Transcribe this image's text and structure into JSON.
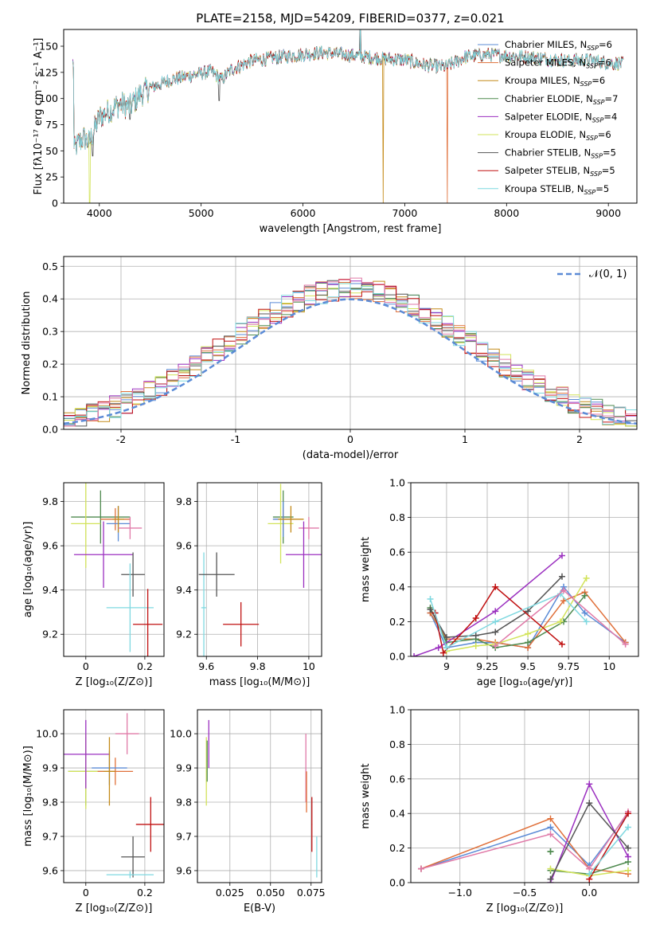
{
  "colors": {
    "chabrier_miles": "#5b8bd6",
    "salpeter_miles": "#e0703a",
    "kroupa_miles": "#c48a18",
    "chabrier_elodie": "#4f8a4f",
    "salpeter_elodie": "#9b30c0",
    "kroupa_elodie": "#d2e35a",
    "chabrier_stelib": "#555555",
    "salpeter_stelib": "#c01010",
    "kroupa_stelib": "#7fd8e0",
    "extra_pink": "#e07aa8",
    "normal": "#5b8bd6"
  },
  "chart_data": [
    {
      "id": "spectrum",
      "type": "line",
      "title": "PLATE=2158, MJD=54209, FIBERID=0377, z=0.021",
      "xlabel": "wavelength [Angstrom, rest frame]",
      "ylabel": "Flux [fλ10⁻¹⁷ erg cm⁻² s⁻¹ A⁻¹]",
      "xlim": [
        3650,
        9280
      ],
      "ylim": [
        0,
        166
      ],
      "xticks": [
        4000,
        5000,
        6000,
        7000,
        8000,
        9000
      ],
      "yticks": [
        0,
        25,
        50,
        75,
        100,
        125,
        150
      ],
      "grid": false,
      "legend_position": "upper-right",
      "legend": [
        {
          "name": "Chabrier MILES, N",
          "sub": "SSP",
          "tail": "=6",
          "color_key": "chabrier_miles"
        },
        {
          "name": "Salpeter MILES, N",
          "sub": "SSP",
          "tail": "=6",
          "color_key": "salpeter_miles"
        },
        {
          "name": "Kroupa MILES, N",
          "sub": "SSP",
          "tail": "=6",
          "color_key": "kroupa_miles"
        },
        {
          "name": "Chabrier ELODIE, N",
          "sub": "SSP",
          "tail": "=7",
          "color_key": "chabrier_elodie"
        },
        {
          "name": "Salpeter ELODIE, N",
          "sub": "SSP",
          "tail": "=4",
          "color_key": "salpeter_elodie"
        },
        {
          "name": "Kroupa ELODIE, N",
          "sub": "SSP",
          "tail": "=6",
          "color_key": "kroupa_elodie"
        },
        {
          "name": "Chabrier STELIB, N",
          "sub": "SSP",
          "tail": "=5",
          "color_key": "chabrier_stelib"
        },
        {
          "name": "Salpeter STELIB, N",
          "sub": "SSP",
          "tail": "=5",
          "color_key": "salpeter_stelib"
        },
        {
          "name": "Kroupa STELIB, N",
          "sub": "SSP",
          "tail": "=5",
          "color_key": "kroupa_stelib"
        }
      ],
      "continuum": [
        [
          3750,
          50
        ],
        [
          3800,
          58
        ],
        [
          3850,
          62
        ],
        [
          3900,
          58
        ],
        [
          3950,
          70
        ],
        [
          4000,
          82
        ],
        [
          4100,
          88
        ],
        [
          4200,
          95
        ],
        [
          4300,
          92
        ],
        [
          4400,
          104
        ],
        [
          4500,
          110
        ],
        [
          4700,
          118
        ],
        [
          4900,
          122
        ],
        [
          5100,
          126
        ],
        [
          5200,
          118
        ],
        [
          5300,
          128
        ],
        [
          5500,
          136
        ],
        [
          5800,
          140
        ],
        [
          6000,
          142
        ],
        [
          6200,
          144
        ],
        [
          6400,
          142
        ],
        [
          6600,
          140
        ],
        [
          6800,
          138
        ],
        [
          7000,
          137
        ],
        [
          7200,
          132
        ],
        [
          7400,
          130
        ],
        [
          7600,
          140
        ],
        [
          7800,
          142
        ],
        [
          8000,
          141
        ],
        [
          8200,
          140
        ],
        [
          8400,
          138
        ],
        [
          8600,
          136
        ],
        [
          8800,
          137
        ],
        [
          9000,
          134
        ],
        [
          9150,
          133
        ]
      ],
      "spikes": [
        [
          6563,
          166
        ],
        [
          5175,
          98
        ],
        [
          4300,
          80
        ],
        [
          3933,
          45
        ]
      ],
      "dropouts": [
        {
          "x": 3905,
          "color_key": "kroupa_elodie"
        },
        {
          "x": 6790,
          "color_key": "kroupa_miles"
        },
        {
          "x": 7420,
          "color_key": "salpeter_miles"
        }
      ]
    },
    {
      "id": "residuals",
      "type": "step",
      "xlabel": "(data-model)/error",
      "ylabel": "Normed distribution",
      "xlim": [
        -2.5,
        2.5
      ],
      "ylim": [
        0,
        0.53
      ],
      "xticks": [
        -2,
        -1,
        0,
        1,
        2
      ],
      "yticks": [
        0.0,
        0.1,
        0.2,
        0.3,
        0.4,
        0.5
      ],
      "grid": true,
      "legend_position": "upper-right",
      "normal_label": "𝒩(0, 1)",
      "bin_width": 0.1,
      "n_series": 9
    },
    {
      "id": "age_vs_z",
      "type": "errorbar",
      "xlabel": "Z [log₁₀(Z/Z⊙)]",
      "ylabel": "age  [log₁₀(age/yr)]",
      "xlim": [
        -0.075,
        0.265
      ],
      "ylim": [
        9.1,
        9.885
      ],
      "xticks": [
        0.0,
        0.2
      ],
      "yticks": [
        9.2,
        9.4,
        9.6,
        9.8
      ],
      "points": [
        {
          "x": 0.05,
          "xerr": 0.1,
          "y": 9.73,
          "yerr": 0.12,
          "color_key": "chabrier_elodie"
        },
        {
          "x": 0.0,
          "xerr": 0.05,
          "y": 9.7,
          "yerr": 0.2,
          "color_key": "kroupa_elodie"
        },
        {
          "x": 0.1,
          "xerr": 0.05,
          "y": 9.72,
          "yerr": 0.05,
          "color_key": "salpeter_miles"
        },
        {
          "x": 0.11,
          "xerr": 0.04,
          "y": 9.7,
          "yerr": 0.08,
          "color_key": "chabrier_miles"
        },
        {
          "x": 0.11,
          "xerr": 0.02,
          "y": 9.72,
          "yerr": 0.06,
          "color_key": "kroupa_miles"
        },
        {
          "x": 0.15,
          "xerr": 0.04,
          "y": 9.68,
          "yerr": 0.05,
          "color_key": "extra_pink"
        },
        {
          "x": 0.06,
          "xerr": 0.1,
          "y": 9.56,
          "yerr": 0.15,
          "color_key": "salpeter_elodie"
        },
        {
          "x": 0.16,
          "xerr": 0.04,
          "y": 9.47,
          "yerr": 0.1,
          "color_key": "chabrier_stelib"
        },
        {
          "x": 0.15,
          "xerr": 0.08,
          "y": 9.32,
          "yerr": 0.2,
          "color_key": "kroupa_stelib"
        },
        {
          "x": 0.21,
          "xerr": 0.05,
          "y": 9.245,
          "yerr": 0.16,
          "color_key": "salpeter_stelib"
        }
      ]
    },
    {
      "id": "age_vs_mass",
      "type": "errorbar",
      "xlabel": "mass [log₁₀(M/M⊙)]",
      "ylabel": "",
      "xlim": [
        9.565,
        10.05
      ],
      "ylim": [
        9.1,
        9.885
      ],
      "xticks": [
        9.6,
        9.8,
        10.0
      ],
      "yticks": [
        9.2,
        9.4,
        9.6,
        9.8
      ],
      "points": [
        {
          "x": 9.59,
          "xerr": 0.01,
          "y": 9.32,
          "yerr": 0.25,
          "color_key": "kroupa_stelib"
        },
        {
          "x": 9.64,
          "xerr": 0.07,
          "y": 9.47,
          "yerr": 0.1,
          "color_key": "chabrier_stelib"
        },
        {
          "x": 9.735,
          "xerr": 0.07,
          "y": 9.245,
          "yerr": 0.1,
          "color_key": "salpeter_stelib"
        },
        {
          "x": 9.9,
          "xerr": 0.04,
          "y": 9.73,
          "yerr": 0.12,
          "color_key": "chabrier_elodie"
        },
        {
          "x": 9.89,
          "xerr": 0.05,
          "y": 9.7,
          "yerr": 0.18,
          "color_key": "kroupa_elodie"
        },
        {
          "x": 9.9,
          "xerr": 0.04,
          "y": 9.72,
          "yerr": 0.05,
          "color_key": "salpeter_miles"
        },
        {
          "x": 9.9,
          "xerr": 0.04,
          "y": 9.72,
          "yerr": 0.08,
          "color_key": "chabrier_miles"
        },
        {
          "x": 9.93,
          "xerr": 0.05,
          "y": 9.72,
          "yerr": 0.06,
          "color_key": "kroupa_miles"
        },
        {
          "x": 10.0,
          "xerr": 0.04,
          "y": 9.68,
          "yerr": 0.05,
          "color_key": "extra_pink"
        },
        {
          "x": 9.98,
          "xerr": 0.07,
          "y": 9.56,
          "yerr": 0.15,
          "color_key": "salpeter_elodie"
        }
      ]
    },
    {
      "id": "weight_vs_age",
      "type": "line",
      "xlabel": "age  [log₁₀(age/yr)]",
      "ylabel": "mass weight",
      "xlim": [
        8.78,
        10.18
      ],
      "ylim": [
        0.0,
        1.0
      ],
      "xticks": [
        9.0,
        9.25,
        9.5,
        9.75,
        10.0
      ],
      "yticks": [
        0.0,
        0.2,
        0.4,
        0.6,
        0.8,
        1.0
      ],
      "grid": true,
      "series": [
        {
          "color_key": "chabrier_miles",
          "x": [
            8.9,
            9.0,
            9.18,
            9.3,
            9.5,
            9.72,
            9.85,
            10.1
          ],
          "y": [
            0.25,
            0.05,
            0.08,
            0.08,
            0.05,
            0.4,
            0.25,
            0.08
          ]
        },
        {
          "color_key": "salpeter_miles",
          "x": [
            8.9,
            9.0,
            9.18,
            9.3,
            9.5,
            9.72,
            9.85,
            10.1
          ],
          "y": [
            0.25,
            0.1,
            0.1,
            0.08,
            0.05,
            0.32,
            0.37,
            0.08
          ]
        },
        {
          "color_key": "chabrier_elodie",
          "x": [
            8.9,
            9.0,
            9.18,
            9.3,
            9.5,
            9.72,
            9.85
          ],
          "y": [
            0.28,
            0.08,
            0.1,
            0.05,
            0.08,
            0.2,
            0.35
          ]
        },
        {
          "color_key": "salpeter_elodie",
          "x": [
            8.8,
            8.95,
            9.3,
            9.71
          ],
          "y": [
            0.0,
            0.05,
            0.26,
            0.58
          ]
        },
        {
          "color_key": "kroupa_elodie",
          "x": [
            9.0,
            9.18,
            9.3,
            9.5,
            9.7,
            9.86
          ],
          "y": [
            0.03,
            0.06,
            0.07,
            0.13,
            0.2,
            0.45
          ]
        },
        {
          "color_key": "chabrier_stelib",
          "x": [
            8.9,
            9.0,
            9.18,
            9.3,
            9.5,
            9.71
          ],
          "y": [
            0.27,
            0.11,
            0.12,
            0.14,
            0.26,
            0.46
          ]
        },
        {
          "color_key": "salpeter_stelib",
          "x": [
            8.93,
            8.98,
            9.18,
            9.3,
            9.71
          ],
          "y": [
            0.25,
            0.02,
            0.22,
            0.4,
            0.07
          ]
        },
        {
          "color_key": "kroupa_stelib",
          "x": [
            8.9,
            9.0,
            9.3,
            9.7,
            9.86
          ],
          "y": [
            0.33,
            0.05,
            0.2,
            0.36,
            0.2
          ]
        },
        {
          "color_key": "extra_pink",
          "x": [
            9.3,
            9.72,
            10.1
          ],
          "y": [
            0.06,
            0.38,
            0.07
          ]
        }
      ]
    },
    {
      "id": "mass_vs_z",
      "type": "errorbar",
      "xlabel": "Z [log₁₀(Z/Z⊙)]",
      "ylabel": "mass [log₁₀(M/M⊙)]",
      "xlim": [
        -0.075,
        0.265
      ],
      "ylim": [
        9.565,
        10.07
      ],
      "xticks": [
        0.0,
        0.2
      ],
      "yticks": [
        9.6,
        9.7,
        9.8,
        9.9,
        10.0
      ],
      "points": [
        {
          "x": 0.0,
          "xerr": 0.06,
          "y": 9.89,
          "yerr": 0.1,
          "color_key": "chabrier_elodie"
        },
        {
          "x": 0.0,
          "xerr": 0.06,
          "y": 9.89,
          "yerr": 0.11,
          "color_key": "kroupa_elodie"
        },
        {
          "x": 0.0,
          "xerr": 0.08,
          "y": 9.94,
          "yerr": 0.1,
          "color_key": "salpeter_elodie"
        },
        {
          "x": 0.1,
          "xerr": 0.06,
          "y": 9.89,
          "yerr": 0.04,
          "color_key": "salpeter_miles"
        },
        {
          "x": 0.08,
          "xerr": 0.06,
          "y": 9.9,
          "yerr": 0.05,
          "color_key": "chabrier_miles"
        },
        {
          "x": 0.08,
          "xerr": 0.02,
          "y": 9.89,
          "yerr": 0.1,
          "color_key": "kroupa_miles"
        },
        {
          "x": 0.14,
          "xerr": 0.04,
          "y": 10.0,
          "yerr": 0.06,
          "color_key": "extra_pink"
        },
        {
          "x": 0.16,
          "xerr": 0.04,
          "y": 9.64,
          "yerr": 0.06,
          "color_key": "chabrier_stelib"
        },
        {
          "x": 0.15,
          "xerr": 0.08,
          "y": 9.588,
          "yerr": 0.01,
          "color_key": "kroupa_stelib"
        },
        {
          "x": 0.22,
          "xerr": 0.05,
          "y": 9.735,
          "yerr": 0.08,
          "color_key": "salpeter_stelib"
        }
      ]
    },
    {
      "id": "mass_vs_ebv",
      "type": "errorbar",
      "xlabel": "E(B-V)",
      "ylabel": "",
      "xlim": [
        0.005,
        0.0815
      ],
      "ylim": [
        9.565,
        10.07
      ],
      "xticks": [
        0.025,
        0.05,
        0.075
      ],
      "xticklabels": [
        "0.025",
        "0.050",
        "0.075"
      ],
      "yticks": [
        9.6,
        9.7,
        9.8,
        9.9,
        10.0
      ],
      "points": [
        {
          "x": 0.0105,
          "xerr": 0.0002,
          "y": 9.89,
          "yerr": 0.1,
          "color_key": "kroupa_elodie"
        },
        {
          "x": 0.011,
          "xerr": 0.0002,
          "y": 9.92,
          "yerr": 0.06,
          "color_key": "chabrier_elodie"
        },
        {
          "x": 0.012,
          "xerr": 0.0002,
          "y": 9.97,
          "yerr": 0.07,
          "color_key": "salpeter_elodie"
        },
        {
          "x": 0.0718,
          "xerr": 0.0002,
          "y": 9.9,
          "yerr": 0.1,
          "color_key": "extra_pink"
        },
        {
          "x": 0.0722,
          "xerr": 0.0002,
          "y": 9.83,
          "yerr": 0.06,
          "color_key": "salpeter_miles"
        },
        {
          "x": 0.0755,
          "xerr": 0.0002,
          "y": 9.735,
          "yerr": 0.08,
          "color_key": "salpeter_stelib"
        },
        {
          "x": 0.0785,
          "xerr": 0.0002,
          "y": 9.64,
          "yerr": 0.06,
          "color_key": "kroupa_stelib"
        }
      ]
    },
    {
      "id": "weight_vs_z",
      "type": "line",
      "xlabel": "Z [log₁₀(Z/Z⊙)]",
      "ylabel": "mass weight",
      "xlim": [
        -1.38,
        0.38
      ],
      "ylim": [
        0.0,
        1.0
      ],
      "xticks": [
        -1.0,
        -0.5,
        0.0
      ],
      "xticklabels": [
        "−1.0",
        "−0.5",
        "0.0"
      ],
      "yticks": [
        0.0,
        0.2,
        0.4,
        0.6,
        0.8,
        1.0
      ],
      "grid": true,
      "series": [
        {
          "color_key": "chabrier_miles",
          "x": [
            -1.3,
            -0.3,
            0.0,
            0.3
          ],
          "y": [
            0.08,
            0.32,
            0.1,
            0.4
          ]
        },
        {
          "color_key": "salpeter_miles",
          "x": [
            -1.3,
            -0.3,
            0.0,
            0.3
          ],
          "y": [
            0.08,
            0.37,
            0.08,
            0.05
          ]
        },
        {
          "color_key": "extra_pink",
          "x": [
            -1.3,
            -0.3,
            0.0,
            0.3
          ],
          "y": [
            0.08,
            0.28,
            0.08,
            0.41
          ]
        },
        {
          "color_key": "chabrier_elodie",
          "x": [
            -0.3,
            0.0,
            0.3
          ],
          "y": [
            0.07,
            0.05,
            0.12
          ]
        },
        {
          "color_key": "salpeter_elodie",
          "x": [
            -0.3,
            0.0,
            0.3
          ],
          "y": [
            0.0,
            0.57,
            0.15
          ]
        },
        {
          "color_key": "kroupa_elodie",
          "x": [
            -0.3,
            0.0,
            0.3
          ],
          "y": [
            0.08,
            0.04,
            0.07
          ]
        },
        {
          "color_key": "chabrier_stelib",
          "x": [
            -0.3,
            0.0,
            0.3
          ],
          "y": [
            0.02,
            0.46,
            0.2
          ]
        },
        {
          "color_key": "salpeter_stelib",
          "x": [
            0.0,
            0.3
          ],
          "y": [
            0.02,
            0.4
          ]
        },
        {
          "color_key": "kroupa_stelib",
          "x": [
            0.0,
            0.3
          ],
          "y": [
            0.05,
            0.32
          ]
        },
        {
          "color_key": "chabrier_elodie",
          "x": [
            -0.3,
            -0.3
          ],
          "y": [
            0.18,
            0.18
          ]
        }
      ]
    }
  ]
}
